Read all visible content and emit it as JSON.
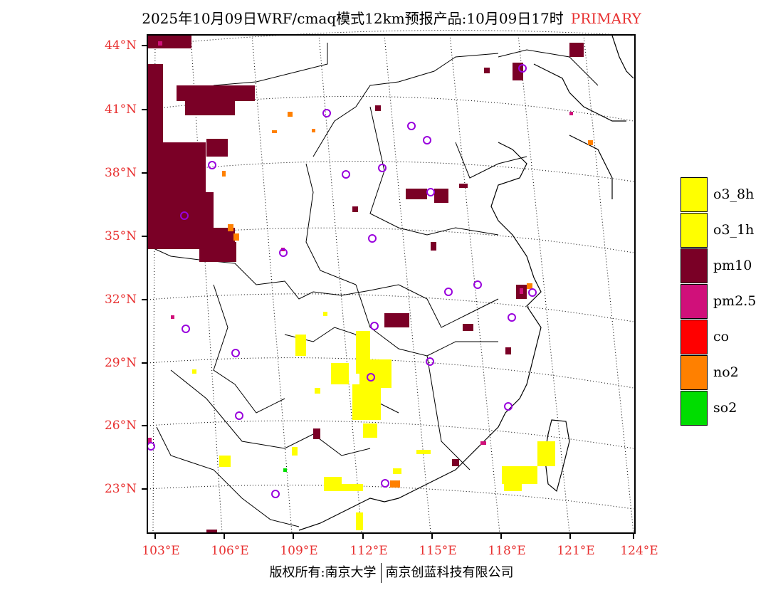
{
  "title": {
    "main": "2025年10月09日WRF/cmaq模式12km预报产品:10月09日17时",
    "primary": "PRIMARY"
  },
  "map": {
    "lat_labels": [
      "44°N",
      "41°N",
      "38°N",
      "35°N",
      "32°N",
      "29°N",
      "26°N",
      "23°N"
    ],
    "lon_labels": [
      "103°E",
      "106°E",
      "109°E",
      "112°E",
      "115°E",
      "118°E",
      "121°E",
      "124°E"
    ]
  },
  "legend": {
    "items": [
      {
        "label": "o3_8h",
        "color": "#ffff00"
      },
      {
        "label": "o3_1h",
        "color": "#ffff00"
      },
      {
        "label": "pm10",
        "color": "#7a0026"
      },
      {
        "label": "pm2.5",
        "color": "#d0107a"
      },
      {
        "label": "co",
        "color": "#ff0000"
      },
      {
        "label": "no2",
        "color": "#ff8000"
      },
      {
        "label": "so2",
        "color": "#00dd00"
      }
    ]
  },
  "footer": {
    "left": "版权所有:南京大学",
    "right": "南京创蓝科技有限公司"
  }
}
